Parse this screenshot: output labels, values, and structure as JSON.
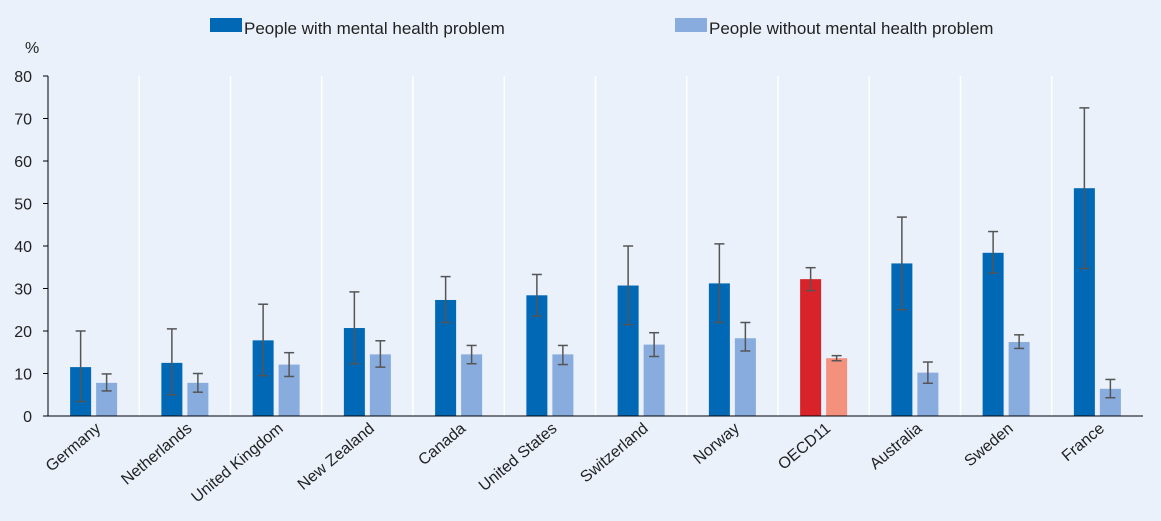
{
  "chart_data": {
    "type": "bar",
    "ylabel": "%",
    "ylim": [
      0,
      80
    ],
    "yticks": [
      0,
      10,
      20,
      30,
      40,
      50,
      60,
      70,
      80
    ],
    "grid": "vertical separators between categories",
    "legend_position": "top",
    "categories": [
      "Germany",
      "Netherlands",
      "United Kingdom",
      "New Zealand",
      "Canada",
      "United States",
      "Switzerland",
      "Norway",
      "OECD11",
      "Australia",
      "Sweden",
      "France"
    ],
    "highlight_category": "OECD11",
    "series": [
      {
        "name": "People with mental health problem",
        "color": "#0068b4",
        "highlight_color": "#d9232a",
        "values": [
          11.5,
          12.5,
          17.8,
          20.7,
          27.3,
          28.4,
          30.7,
          31.2,
          32.2,
          35.9,
          38.4,
          53.6
        ],
        "error_low": [
          3.4,
          5.0,
          9.5,
          12.3,
          22.0,
          23.5,
          21.5,
          22.0,
          29.5,
          25.0,
          33.6,
          34.7
        ],
        "error_high": [
          20.0,
          20.5,
          26.3,
          29.2,
          32.8,
          33.3,
          40.0,
          40.5,
          34.9,
          46.8,
          43.4,
          72.5
        ]
      },
      {
        "name": "People without mental health problem",
        "color": "#88acdd",
        "highlight_color": "#f4917d",
        "values": [
          7.8,
          7.8,
          12.1,
          14.5,
          14.5,
          14.5,
          16.8,
          18.3,
          13.6,
          10.2,
          17.4,
          6.4
        ],
        "error_low": [
          5.9,
          5.6,
          9.3,
          11.5,
          12.3,
          12.1,
          14.0,
          15.3,
          13.0,
          7.7,
          15.9,
          4.3
        ],
        "error_high": [
          9.9,
          10.0,
          14.9,
          17.7,
          16.6,
          16.6,
          19.6,
          22.0,
          14.2,
          12.7,
          19.1,
          8.6
        ]
      }
    ]
  }
}
